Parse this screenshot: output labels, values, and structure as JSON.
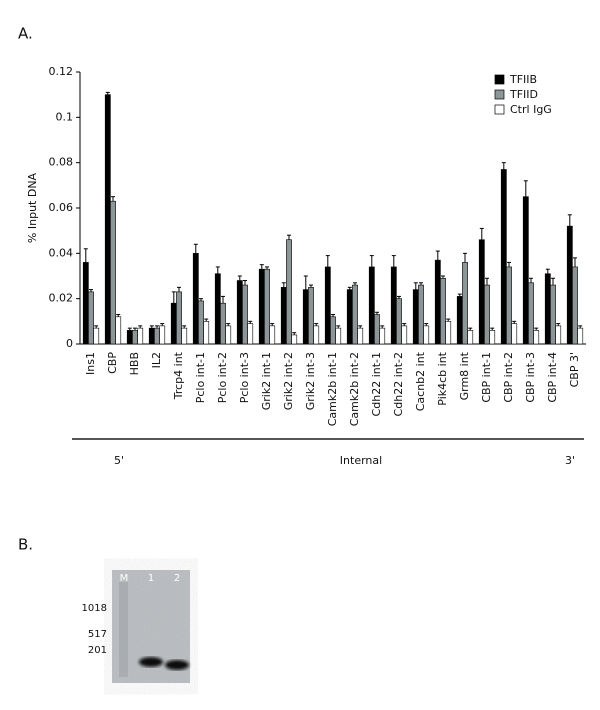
{
  "chart_data": {
    "type": "bar",
    "panel_label": "A.",
    "y_label": "% Input DNA",
    "categories": [
      "Ins1",
      "CBP",
      "HBB",
      "IL2",
      "Trcp4 int",
      "Pclo int-1",
      "Pclo int-2",
      "Pclo int-3",
      "Grik2 int-1",
      "Grik2 int-2",
      "Grik2 int-3",
      "Camk2b int-1",
      "Camk2b int-2",
      "Cdh22 int-1",
      "Cdh22 int-2",
      "Cacnb2 int",
      "Pik4cb int",
      "Grm8 int",
      "CBP int-1",
      "CBP int-2",
      "CBP int-3",
      "CBP int-4",
      "CBP 3'"
    ],
    "series": [
      {
        "name": "TFIIB",
        "color": "#000000",
        "values": [
          0.036,
          0.11,
          0.006,
          0.007,
          0.018,
          0.04,
          0.031,
          0.028,
          0.033,
          0.025,
          0.024,
          0.034,
          0.024,
          0.034,
          0.034,
          0.024,
          0.037,
          0.021,
          0.046,
          0.077,
          0.065,
          0.031,
          0.052
        ],
        "errors": [
          0.006,
          0.001,
          0.001,
          0.001,
          0.005,
          0.004,
          0.003,
          0.002,
          0.002,
          0.002,
          0.006,
          0.005,
          0.001,
          0.005,
          0.005,
          0.003,
          0.004,
          0.001,
          0.005,
          0.003,
          0.007,
          0.002,
          0.005
        ]
      },
      {
        "name": "TFIID",
        "color": "#8c9598",
        "values": [
          0.023,
          0.063,
          0.006,
          0.007,
          0.023,
          0.019,
          0.018,
          0.026,
          0.033,
          0.046,
          0.025,
          0.012,
          0.026,
          0.013,
          0.02,
          0.026,
          0.029,
          0.036,
          0.026,
          0.034,
          0.027,
          0.026,
          0.034
        ],
        "errors": [
          0.001,
          0.002,
          0.001,
          0.001,
          0.002,
          0.001,
          0.003,
          0.002,
          0.001,
          0.002,
          0.001,
          0.001,
          0.001,
          0.001,
          0.001,
          0.001,
          0.001,
          0.004,
          0.003,
          0.002,
          0.002,
          0.003,
          0.004
        ]
      },
      {
        "name": "Ctrl IgG",
        "color": "#ffffff",
        "values": [
          0.007,
          0.012,
          0.007,
          0.008,
          0.007,
          0.01,
          0.008,
          0.009,
          0.008,
          0.004,
          0.008,
          0.007,
          0.007,
          0.007,
          0.008,
          0.008,
          0.01,
          0.006,
          0.006,
          0.009,
          0.006,
          0.008,
          0.007
        ],
        "errors": [
          0.001,
          0.001,
          0.001,
          0.001,
          0.001,
          0.001,
          0.001,
          0.001,
          0.001,
          0.001,
          0.001,
          0.001,
          0.001,
          0.001,
          0.001,
          0.001,
          0.001,
          0.001,
          0.001,
          0.001,
          0.001,
          0.001,
          0.001
        ]
      }
    ],
    "ylim": [
      0,
      0.12
    ],
    "yticks": [
      0,
      0.02,
      0.04,
      0.06,
      0.08,
      0.1,
      0.12
    ],
    "legend": "top-right",
    "regions": [
      "5'",
      "Internal",
      "3'"
    ]
  },
  "gel": {
    "panel_label": "B.",
    "lanes": [
      "M",
      "1",
      "2"
    ],
    "markers": [
      "1018",
      "517",
      "201"
    ]
  }
}
